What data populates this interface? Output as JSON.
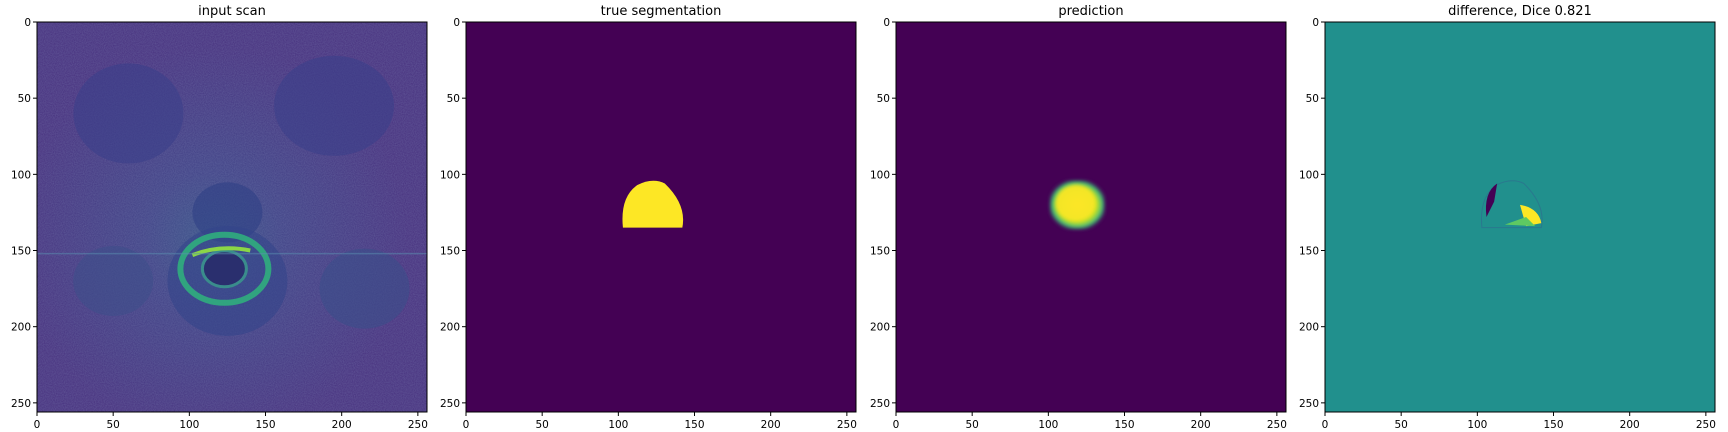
{
  "chart_data": [
    {
      "type": "heatmap",
      "title": "input scan",
      "xlabel": "",
      "ylabel": "",
      "x_ticks": [
        0,
        50,
        100,
        150,
        200,
        250
      ],
      "y_ticks": [
        0,
        50,
        100,
        150,
        200,
        250
      ],
      "xlim": [
        0,
        256
      ],
      "ylim": [
        256,
        0
      ],
      "colormap": "viridis",
      "content": "axial MRI slice with bright ring-shaped structure near (120, 160)"
    },
    {
      "type": "heatmap",
      "title": "true segmentation",
      "xlabel": "",
      "ylabel": "",
      "x_ticks": [
        0,
        50,
        100,
        150,
        200,
        250
      ],
      "y_ticks": [
        0,
        50,
        100,
        150,
        200,
        250
      ],
      "xlim": [
        0,
        256
      ],
      "ylim": [
        256,
        0
      ],
      "colormap": "viridis",
      "mask_bounds": {
        "x": [
          103,
          142
        ],
        "y": [
          104,
          135
        ]
      }
    },
    {
      "type": "heatmap",
      "title": "prediction",
      "xlabel": "",
      "ylabel": "",
      "x_ticks": [
        0,
        50,
        100,
        150,
        200,
        250
      ],
      "y_ticks": [
        0,
        50,
        100,
        150,
        200,
        250
      ],
      "xlim": [
        0,
        256
      ],
      "ylim": [
        256,
        0
      ],
      "colormap": "viridis",
      "mask_bounds": {
        "x": [
          101,
          137
        ],
        "y": [
          104,
          136
        ]
      }
    },
    {
      "type": "heatmap",
      "title": "difference, Dice 0.821",
      "xlabel": "",
      "ylabel": "",
      "x_ticks": [
        0,
        50,
        100,
        150,
        200,
        250
      ],
      "y_ticks": [
        0,
        50,
        100,
        150,
        200,
        250
      ],
      "xlim": [
        0,
        256
      ],
      "ylim": [
        256,
        0
      ],
      "colormap": "viridis",
      "dice": 0.821
    }
  ],
  "colors": {
    "background_low": "#440154",
    "mid": "#21908d",
    "high": "#fde725",
    "green": "#5ec962",
    "teal": "#3b528b"
  }
}
